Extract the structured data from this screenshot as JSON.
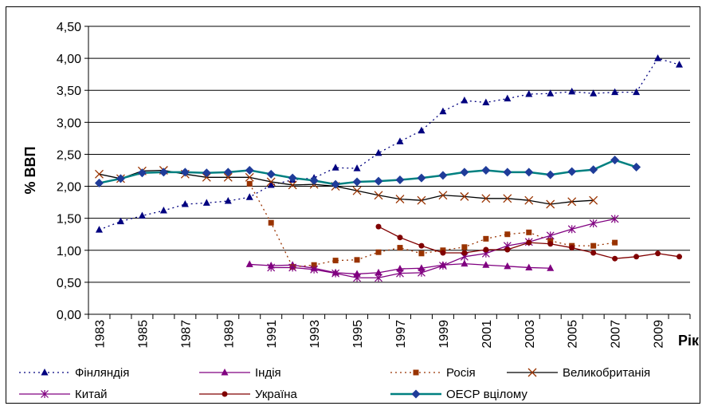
{
  "chart_data": {
    "type": "line",
    "xlabel": "Рік",
    "ylabel": "% ВВП",
    "ylim": [
      0,
      4.5
    ],
    "xlim": [
      1983,
      2010
    ],
    "yticks": [
      "0,00",
      "0,50",
      "1,00",
      "1,50",
      "2,00",
      "2,50",
      "3,00",
      "3,50",
      "4,00",
      "4,50"
    ],
    "xticks": [
      "1983",
      "1985",
      "1987",
      "1989",
      "1991",
      "1993",
      "1995",
      "1997",
      "1999",
      "2001",
      "2003",
      "2005",
      "2007",
      "2009"
    ],
    "grid": "horizontal",
    "legend": "bottom",
    "series": [
      {
        "name": "Фінляндія",
        "color": "#00007f",
        "dash": "dotted",
        "marker": "triangle",
        "x": [
          1983,
          1984,
          1985,
          1986,
          1987,
          1988,
          1989,
          1990,
          1991,
          1992,
          1993,
          1994,
          1995,
          1996,
          1997,
          1998,
          1999,
          2000,
          2001,
          2002,
          2003,
          2004,
          2005,
          2006,
          2007,
          2008,
          2009,
          2010
        ],
        "y": [
          1.32,
          1.45,
          1.54,
          1.62,
          1.72,
          1.74,
          1.77,
          1.83,
          2.02,
          2.1,
          2.13,
          2.29,
          2.28,
          2.52,
          2.7,
          2.87,
          3.17,
          3.34,
          3.31,
          3.37,
          3.44,
          3.45,
          3.48,
          3.45,
          3.47,
          3.47,
          4.0,
          3.9
        ]
      },
      {
        "name": "Індія",
        "color": "#800080",
        "dash": "solid",
        "marker": "triangle",
        "x": [
          1990,
          1991,
          1992,
          1993,
          1994,
          1995,
          1996,
          1997,
          1998,
          1999,
          2000,
          2001,
          2002,
          2003,
          2004
        ],
        "y": [
          0.78,
          0.76,
          0.77,
          0.72,
          0.65,
          0.63,
          0.65,
          0.71,
          0.72,
          0.77,
          0.79,
          0.77,
          0.75,
          0.73,
          0.72
        ]
      },
      {
        "name": "Росія",
        "color": "#993300",
        "dash": "dotted",
        "marker": "square",
        "x": [
          1990,
          1991,
          1992,
          1993,
          1994,
          1995,
          1996,
          1997,
          1998,
          1999,
          2000,
          2001,
          2002,
          2003,
          2004,
          2005,
          2006,
          2007
        ],
        "y": [
          2.04,
          1.43,
          0.74,
          0.77,
          0.84,
          0.85,
          0.97,
          1.04,
          0.95,
          1.0,
          1.05,
          1.18,
          1.25,
          1.28,
          1.15,
          1.07,
          1.07,
          1.12
        ]
      },
      {
        "name": "Великобританія",
        "color": "#000000",
        "markerColor": "#993300",
        "dash": "solid",
        "marker": "x",
        "x": [
          1983,
          1984,
          1985,
          1986,
          1987,
          1988,
          1989,
          1990,
          1991,
          1992,
          1993,
          1994,
          1995,
          1996,
          1997,
          1998,
          1999,
          2000,
          2001,
          2002,
          2003,
          2004,
          2005,
          2006
        ],
        "y": [
          2.19,
          2.12,
          2.24,
          2.25,
          2.19,
          2.14,
          2.14,
          2.14,
          2.07,
          2.02,
          2.03,
          2.0,
          1.93,
          1.86,
          1.8,
          1.78,
          1.86,
          1.84,
          1.81,
          1.81,
          1.78,
          1.72,
          1.76,
          1.78
        ]
      },
      {
        "name": "Китай",
        "color": "#800080",
        "dash": "solid",
        "marker": "star",
        "x": [
          1991,
          1992,
          1993,
          1994,
          1995,
          1996,
          1997,
          1998,
          1999,
          2000,
          2001,
          2002,
          2003,
          2004,
          2005,
          2006,
          2007
        ],
        "y": [
          0.73,
          0.73,
          0.7,
          0.64,
          0.57,
          0.57,
          0.64,
          0.65,
          0.76,
          0.9,
          0.95,
          1.07,
          1.13,
          1.23,
          1.33,
          1.42,
          1.49
        ]
      },
      {
        "name": "Україна",
        "color": "#800000",
        "dash": "solid",
        "marker": "circle",
        "x": [
          1996,
          1997,
          1998,
          1999,
          2000,
          2001,
          2002,
          2003,
          2004,
          2005,
          2006,
          2007,
          2008,
          2009,
          2010
        ],
        "y": [
          1.37,
          1.2,
          1.07,
          0.96,
          0.96,
          1.01,
          1.01,
          1.12,
          1.1,
          1.04,
          0.96,
          0.87,
          0.9,
          0.95,
          0.9
        ]
      },
      {
        "name": "ОЕСР вцілому",
        "color": "#008080",
        "markerColor": "#1f3c99",
        "dash": "solid",
        "width": 2.5,
        "marker": "diamond",
        "x": [
          1983,
          1984,
          1985,
          1986,
          1987,
          1988,
          1989,
          1990,
          1991,
          1992,
          1993,
          1994,
          1995,
          1996,
          1997,
          1998,
          1999,
          2000,
          2001,
          2002,
          2003,
          2004,
          2005,
          2006,
          2007,
          2008
        ],
        "y": [
          2.05,
          2.12,
          2.21,
          2.22,
          2.22,
          2.21,
          2.22,
          2.25,
          2.19,
          2.13,
          2.09,
          2.03,
          2.07,
          2.08,
          2.1,
          2.13,
          2.17,
          2.22,
          2.25,
          2.22,
          2.22,
          2.18,
          2.23,
          2.26,
          2.41,
          2.3
        ]
      }
    ]
  }
}
